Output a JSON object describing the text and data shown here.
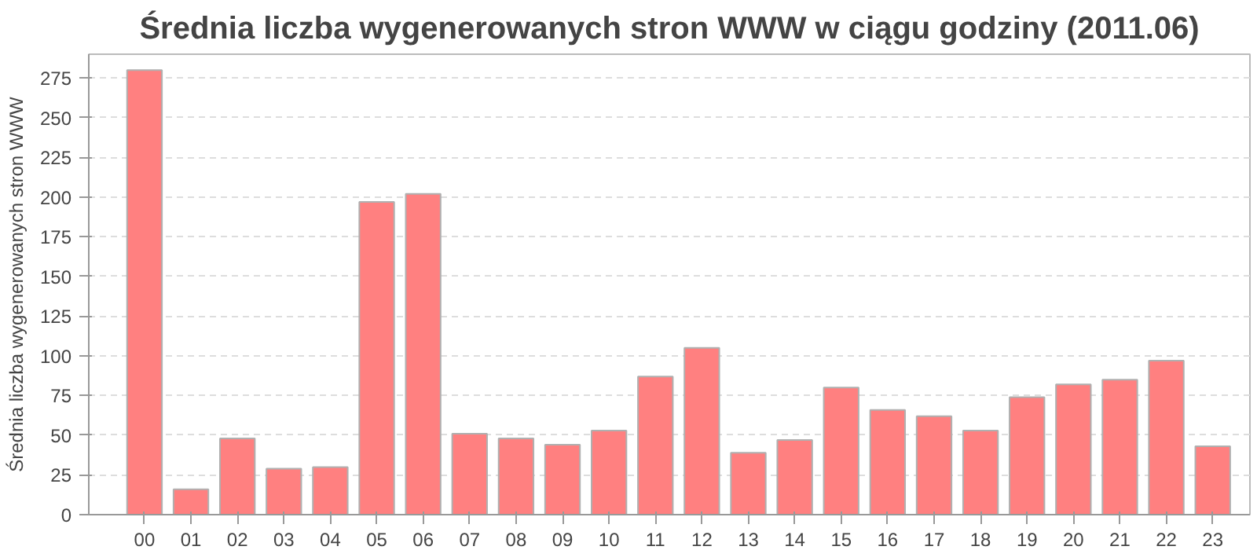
{
  "chart_data": {
    "type": "bar",
    "title": "Średnia liczba wygenerowanych stron WWW w ciągu godziny (2011.06)",
    "ylabel": "Średnia liczba wygenerowanych stron WWW",
    "categories": [
      "00",
      "01",
      "02",
      "03",
      "04",
      "05",
      "06",
      "07",
      "08",
      "09",
      "10",
      "11",
      "12",
      "13",
      "14",
      "15",
      "16",
      "17",
      "18",
      "19",
      "20",
      "21",
      "22",
      "23"
    ],
    "values": [
      280,
      16,
      48,
      29,
      30,
      197,
      202,
      51,
      48,
      44,
      53,
      87,
      105,
      39,
      47,
      80,
      66,
      62,
      53,
      74,
      82,
      85,
      97,
      43
    ],
    "color": "#ff8080",
    "ylim": [
      0,
      290
    ],
    "yticks": [
      0,
      25,
      50,
      75,
      100,
      125,
      150,
      175,
      200,
      225,
      250,
      275
    ],
    "grid": "y"
  }
}
